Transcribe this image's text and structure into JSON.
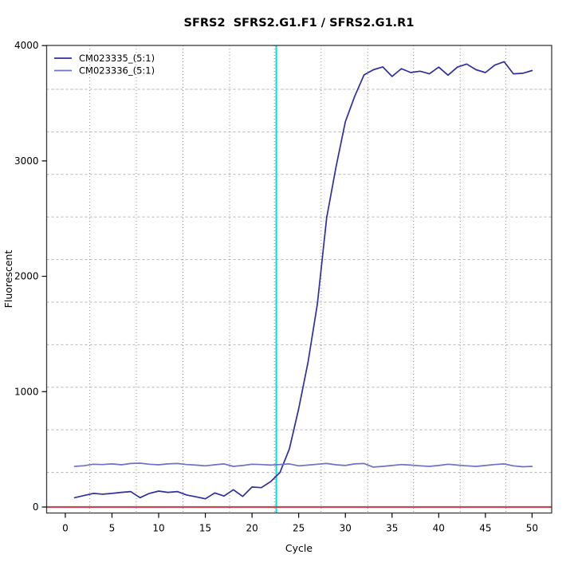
{
  "title": "SFRS2  SFRS2.G1.F1 / SFRS2.G1.R1",
  "chart_data": {
    "type": "line",
    "title": "SFRS2  SFRS2.G1.F1 / SFRS2.G1.R1",
    "xlabel": "Cycle",
    "ylabel": "Fluorescent",
    "xlim": [
      -2,
      52.1
    ],
    "ylim": [
      -52,
      4001
    ],
    "x_ticks": [
      0,
      5,
      10,
      15,
      20,
      25,
      30,
      35,
      40,
      45,
      50
    ],
    "x_tick_labels": [
      "0",
      "5",
      "10",
      "15",
      "20",
      "25",
      "30",
      "35",
      "40",
      "45",
      "50"
    ],
    "y_ticks": [
      0,
      1000,
      2000,
      3000,
      4000
    ],
    "y_tick_labels": [
      "0",
      "1000",
      "2000",
      "3000",
      "4000"
    ],
    "grid": {
      "on": true,
      "vertical_x": [
        2.6,
        7.6,
        12.6,
        17.6,
        22.4,
        27.4,
        32.4,
        37.3,
        42.3,
        47.2
      ],
      "vertical_style": "dotted",
      "horizontal_y": [
        300,
        669,
        1038,
        1407,
        1776,
        2145,
        2514,
        2883,
        3252,
        3621
      ],
      "horizontal_style": "dashed",
      "color_vertical": "#8f8f8f",
      "color_horizontal": "#b4b4b4"
    },
    "threshold_line": {
      "orientation": "vertical",
      "x": 22.6,
      "color": "#00e6e6"
    },
    "baseline": {
      "orientation": "horizontal",
      "y": 0,
      "color": "#c14953"
    },
    "legend": {
      "position": "top-left"
    },
    "x": [
      1,
      2,
      3,
      4,
      5,
      6,
      7,
      8,
      9,
      10,
      11,
      12,
      13,
      14,
      15,
      16,
      17,
      18,
      19,
      20,
      21,
      22,
      23,
      24,
      25,
      26,
      27,
      28,
      29,
      30,
      31,
      32,
      33,
      34,
      35,
      36,
      37,
      38,
      39,
      40,
      41,
      42,
      43,
      44,
      45,
      46,
      47,
      48,
      49,
      50
    ],
    "series": [
      {
        "name": "CM023335_(5:1)",
        "color": "#2f2f9d",
        "values": [
          81,
          99,
          118,
          111,
          118,
          127,
          134,
          81,
          118,
          138,
          127,
          134,
          104,
          88,
          71,
          122,
          95,
          150,
          92,
          173,
          168,
          220,
          300,
          504,
          853,
          1256,
          1760,
          2510,
          2948,
          3340,
          3560,
          3745,
          3790,
          3815,
          3732,
          3800,
          3766,
          3778,
          3755,
          3813,
          3743,
          3813,
          3840,
          3790,
          3766,
          3830,
          3860,
          3755,
          3760,
          3783
        ]
      },
      {
        "name": "CM023336_(5:1)",
        "color": "#7070c4",
        "values": [
          352,
          358,
          371,
          368,
          374,
          366,
          377,
          380,
          371,
          366,
          374,
          377,
          368,
          363,
          357,
          366,
          374,
          352,
          360,
          371,
          368,
          363,
          368,
          374,
          357,
          363,
          371,
          377,
          366,
          360,
          374,
          377,
          346,
          352,
          360,
          368,
          363,
          357,
          352,
          360,
          371,
          363,
          357,
          352,
          360,
          368,
          374,
          357,
          349,
          352
        ]
      }
    ]
  }
}
